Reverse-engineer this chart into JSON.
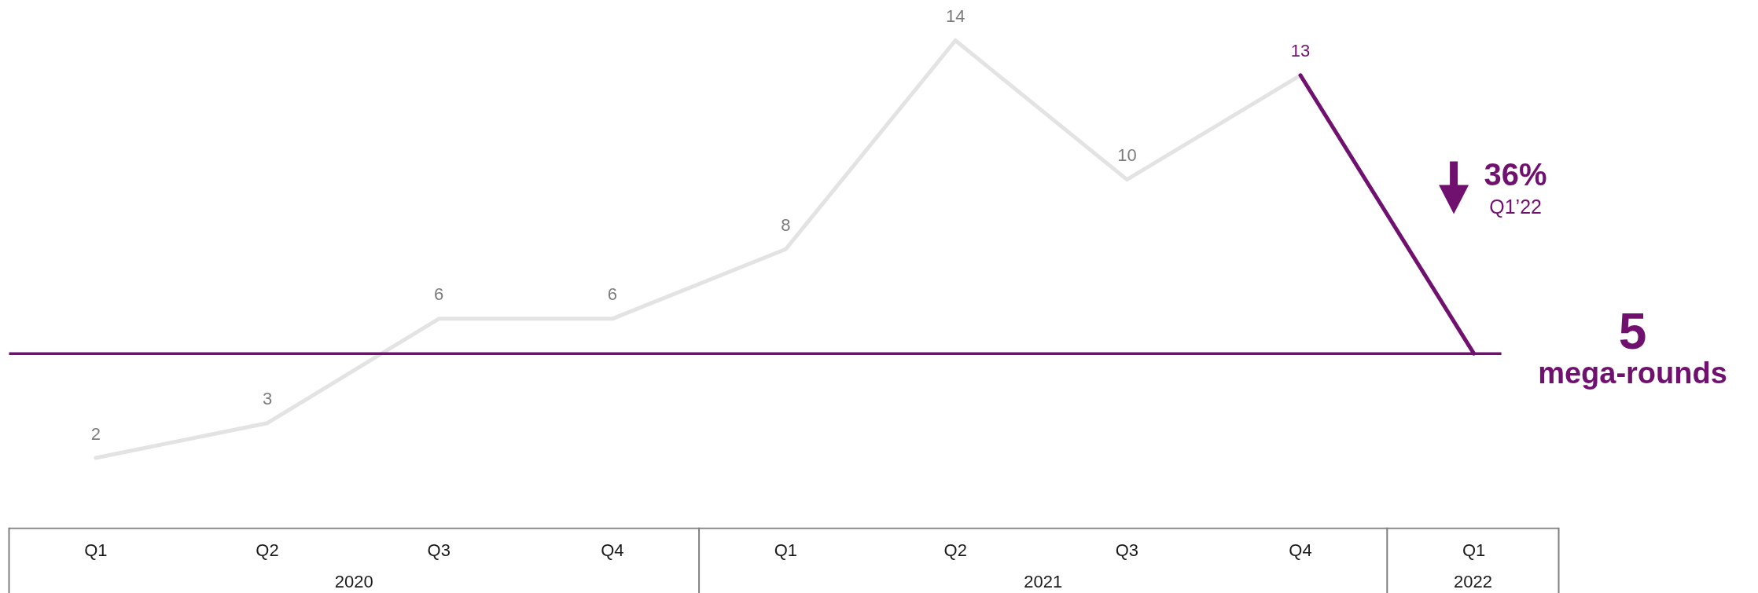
{
  "chart_data": {
    "type": "line",
    "x": [
      "2020-01",
      "2020-04",
      "2020-07",
      "2020-10",
      "2021-01",
      "2021-04",
      "2021-07",
      "2021-10",
      "2022-01"
    ],
    "xlim": [
      "2019-11-16",
      "2022-02-15"
    ],
    "xticks": [
      {
        "value": "2020-01",
        "label": "Q1"
      },
      {
        "value": "2020-04",
        "label": "Q2"
      },
      {
        "value": "2020-07",
        "label": "Q3"
      },
      {
        "value": "2020-10",
        "label": "Q4"
      },
      {
        "value": "2021-01",
        "label": "Q1"
      },
      {
        "value": "2021-04",
        "label": "Q2"
      },
      {
        "value": "2021-07",
        "label": "Q3"
      },
      {
        "value": "2021-10",
        "label": "Q4"
      },
      {
        "value": "2022-01",
        "label": "Q1"
      }
    ],
    "tick_labels": "x",
    "series": [
      {
        "color": "#e3e3e3",
        "values": [
          2,
          3,
          6,
          6,
          8,
          14,
          10,
          13,
          null
        ],
        "value_labels": [
          "2",
          "3",
          "6",
          "6",
          "8",
          "14",
          "10",
          null,
          null
        ]
      },
      {
        "color": "#701170",
        "values": [
          null,
          null,
          null,
          null,
          null,
          null,
          null,
          13,
          5
        ],
        "value_labels": [
          null,
          null,
          null,
          null,
          null,
          null,
          null,
          "13",
          null
        ]
      }
    ],
    "ref_lines": [
      {
        "axis": "y",
        "value": 5,
        "label": "5\nmega-rounds",
        "color": "#701170"
      }
    ],
    "annotations": [
      "2020",
      "2021",
      "2022",
      "36%",
      "Q1’22"
    ]
  }
}
